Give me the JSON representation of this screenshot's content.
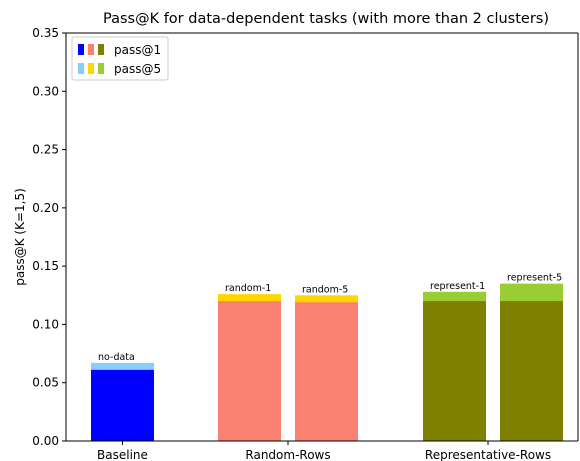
{
  "chart_data": {
    "type": "bar",
    "title": "Pass@K for data-dependent tasks (with more than 2 clusters)",
    "xlabel": "",
    "ylabel": "pass@K (K=1,5)",
    "ylim": [
      0,
      0.35
    ],
    "yticks": [
      0.0,
      0.05,
      0.1,
      0.15,
      0.2,
      0.25,
      0.3,
      0.35
    ],
    "ytick_labels": [
      "0.00",
      "0.05",
      "0.10",
      "0.15",
      "0.20",
      "0.25",
      "0.30",
      "0.35"
    ],
    "grid": false,
    "legend_position": "top-left",
    "legend": [
      {
        "label": "pass@1",
        "colors": [
          "#0000ff",
          "#fa8072",
          "#808000"
        ]
      },
      {
        "label": "pass@5",
        "colors": [
          "#87cefa",
          "#ffd700",
          "#9acd32"
        ]
      }
    ],
    "categories": [
      "Baseline",
      "Random-Rows",
      "Representative-Rows"
    ],
    "bars": [
      {
        "category": "Baseline",
        "label": "no-data",
        "pass1": 0.061,
        "pass5": 0.067,
        "color1": "#0000ff",
        "color5": "#87cefa"
      },
      {
        "category": "Random-Rows",
        "label": "random-1",
        "pass1": 0.12,
        "pass5": 0.126,
        "color1": "#fa8072",
        "color5": "#ffd700"
      },
      {
        "category": "Random-Rows",
        "label": "random-5",
        "pass1": 0.119,
        "pass5": 0.125,
        "color1": "#fa8072",
        "color5": "#ffd700"
      },
      {
        "category": "Representative-Rows",
        "label": "represent-1",
        "pass1": 0.12,
        "pass5": 0.128,
        "color1": "#808000",
        "color5": "#9acd32"
      },
      {
        "category": "Representative-Rows",
        "label": "represent-5",
        "pass1": 0.12,
        "pass5": 0.135,
        "color1": "#808000",
        "color5": "#9acd32"
      }
    ]
  }
}
